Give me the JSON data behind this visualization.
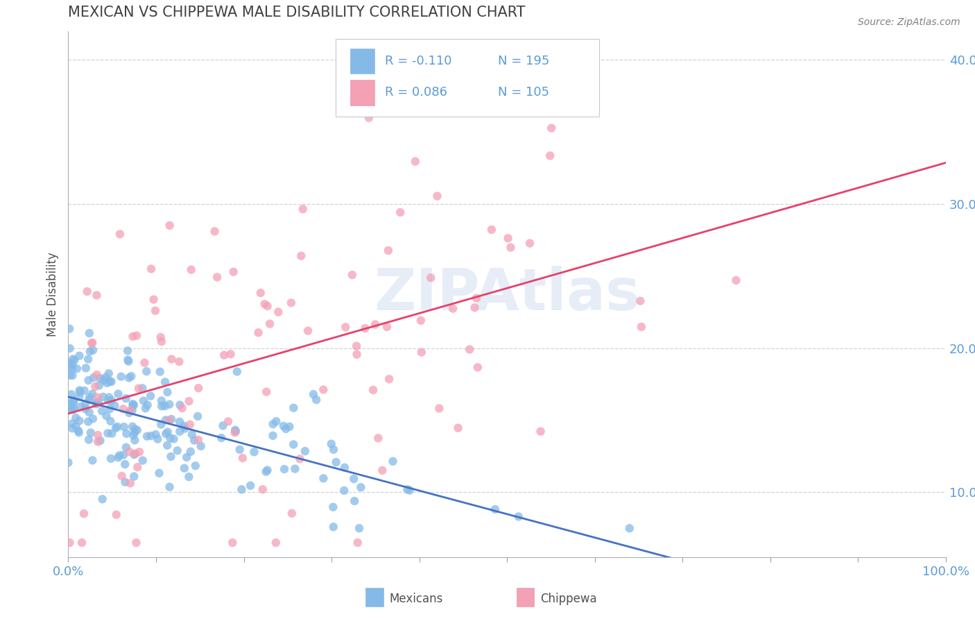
{
  "title": "MEXICAN VS CHIPPEWA MALE DISABILITY CORRELATION CHART",
  "source": "Source: ZipAtlas.com",
  "ylabel": "Male Disability",
  "xlim": [
    0.0,
    1.0
  ],
  "ylim": [
    0.055,
    0.42
  ],
  "yticks": [
    0.1,
    0.2,
    0.3,
    0.4
  ],
  "ytick_labels": [
    "10.0%",
    "20.0%",
    "30.0%",
    "40.0%"
  ],
  "xticks": [
    0.0,
    0.1,
    0.2,
    0.3,
    0.4,
    0.5,
    0.6,
    0.7,
    0.8,
    0.9,
    1.0
  ],
  "xtick_labels": [
    "0.0%",
    "",
    "",
    "",
    "",
    "",
    "",
    "",
    "",
    "",
    "100.0%"
  ],
  "n_mexican": 195,
  "n_chippewa": 105,
  "color_mexican": "#85BAE8",
  "color_chippewa": "#F4A0B5",
  "line_color_mexican": "#4472C4",
  "line_color_chippewa": "#E8406A",
  "background_color": "#FFFFFF",
  "watermark": "ZIPAtlas",
  "title_color": "#404040",
  "title_fontsize": 15,
  "axis_label_color": "#505050",
  "tick_label_color": "#5B9BD5",
  "grid_color": "#C8C8C8",
  "r_mexican": -0.11,
  "r_chippewa": 0.086,
  "legend_r1": "R = -0.110",
  "legend_n1": "N = 195",
  "legend_r2": "R = 0.086",
  "legend_n2": "N = 105"
}
